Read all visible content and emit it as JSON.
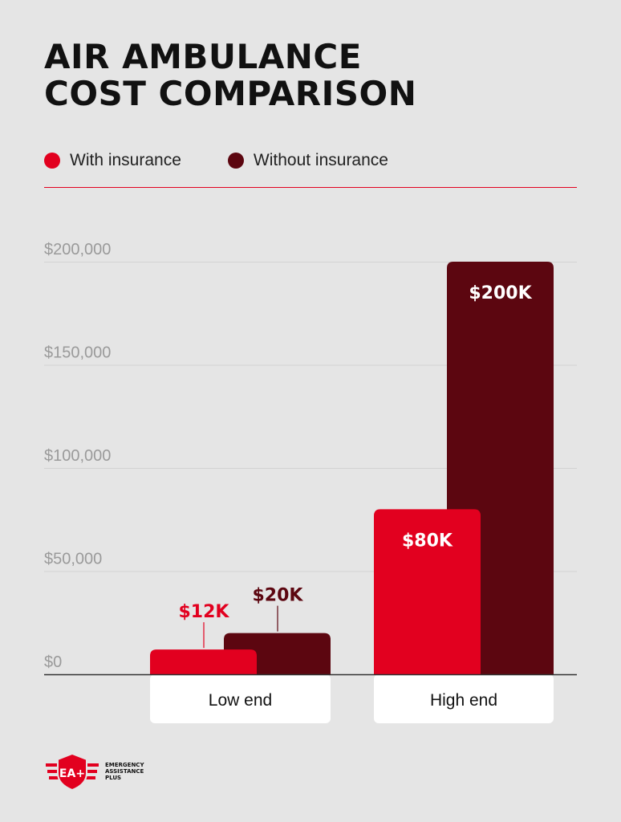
{
  "chart_data": {
    "type": "bar",
    "title": "AIR AMBULANCE COST COMPARISON",
    "title_lines": [
      "AIR AMBULANCE",
      "COST COMPARISON"
    ],
    "categories": [
      "Low end",
      "High end"
    ],
    "series": [
      {
        "name": "With insurance",
        "color": "#e2001f",
        "values": [
          12000,
          80000
        ],
        "labels": [
          "$12K",
          "$80K"
        ]
      },
      {
        "name": "Without insurance",
        "color": "#5c0610",
        "values": [
          20000,
          200000
        ],
        "labels": [
          "$20K",
          "$200K"
        ]
      }
    ],
    "yticks": [
      0,
      50000,
      100000,
      150000,
      200000
    ],
    "ytick_labels": [
      "$0",
      "$50,000",
      "$100,000",
      "$150,000",
      "$200,000"
    ],
    "ylim": [
      0,
      200000
    ],
    "grid": true,
    "legend": "top-left",
    "xlabel": "",
    "ylabel": ""
  },
  "brand": {
    "name": "EMERGENCY ASSISTANCE PLUS",
    "lines": [
      "EMERGENCY",
      "ASSISTANCE",
      "PLUS"
    ],
    "mark": "EA+",
    "color": "#e2001f"
  }
}
